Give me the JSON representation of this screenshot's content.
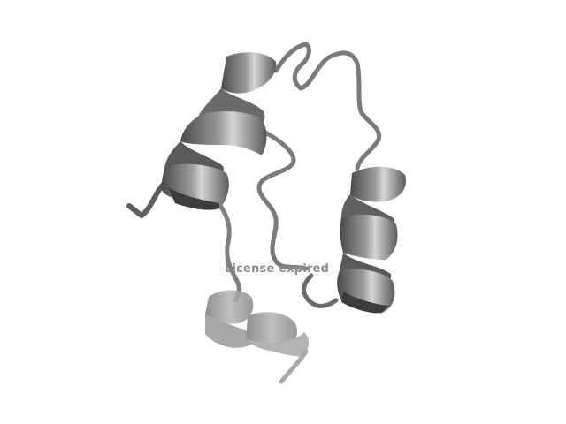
{
  "viewer": {
    "watermark_text": "License expired"
  },
  "structure": {
    "representation": "cartoon",
    "helix_count": 4
  },
  "colors": {
    "background": "#ffffff",
    "ribbon": "#6e6e6e",
    "ribbon_dark": "#3c3c3c",
    "ribbon_highlight": "#d0d0d0",
    "coil": "#7a7a7a",
    "faded_ribbon": "#9a9a9a",
    "watermark": "#8c8c8c"
  }
}
